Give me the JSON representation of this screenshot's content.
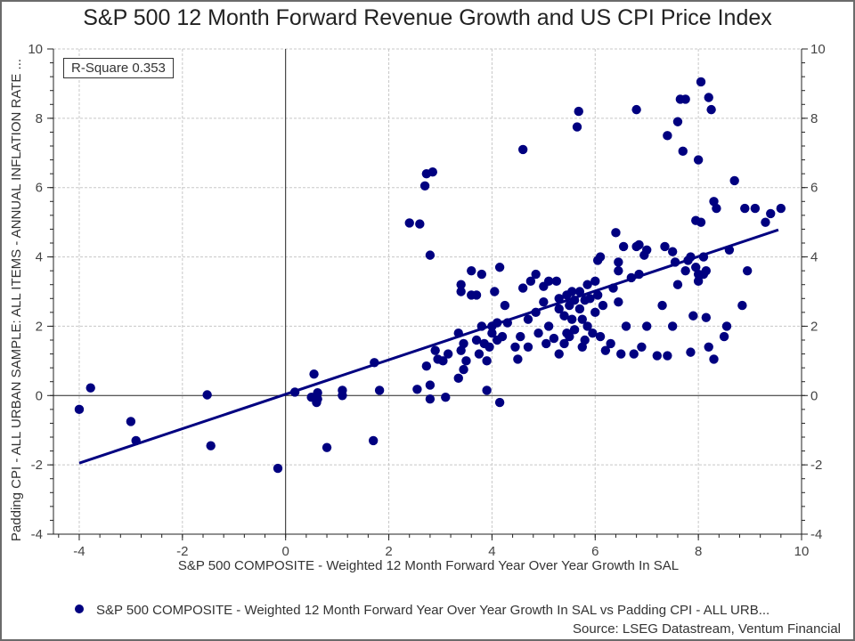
{
  "chart_data": {
    "type": "scatter",
    "title": "S&P 500 12 Month Forward Revenue Growth and US CPI Price Index",
    "xlabel": "S&P 500 COMPOSITE - Weighted 12 Month Forward Year Over Year Growth In SAL",
    "ylabel": "Padding CPI - ALL URBAN SAMPLE: ALL ITEMS - ANNUAL INFLATION RATE ...",
    "xlim": [
      -4.5,
      10
    ],
    "ylim": [
      -4,
      10
    ],
    "x_ticks": [
      "-4",
      "-2",
      "0",
      "2",
      "4",
      "6",
      "8",
      "10"
    ],
    "y_ticks": [
      "-4",
      "-2",
      "0",
      "2",
      "4",
      "6",
      "8",
      "10"
    ],
    "grid": true,
    "annotation": "R-Square 0.353",
    "legend": {
      "position": "bottom",
      "entries": [
        "S&P 500 COMPOSITE - Weighted 12 Month Forward Year Over Year Growth In SAL vs Padding CPI - ALL URB..."
      ]
    },
    "series": [
      {
        "name": "S&P 500 COMPOSITE - Weighted 12 Month Forward Year Over Year Growth In SAL vs Padding CPI - ALL URB...",
        "color": "#000080",
        "points": [
          [
            -4.0,
            -0.4
          ],
          [
            -3.78,
            0.22
          ],
          [
            -3.0,
            -0.75
          ],
          [
            -2.9,
            -1.3
          ],
          [
            -1.52,
            0.02
          ],
          [
            -1.45,
            -1.45
          ],
          [
            -0.15,
            -2.1
          ],
          [
            0.18,
            0.1
          ],
          [
            0.5,
            -0.05
          ],
          [
            0.55,
            0.62
          ],
          [
            0.6,
            -0.2
          ],
          [
            0.62,
            0.08
          ],
          [
            0.62,
            -0.1
          ],
          [
            0.8,
            -1.5
          ],
          [
            1.1,
            0.15
          ],
          [
            1.1,
            0.0
          ],
          [
            1.7,
            -1.3
          ],
          [
            1.72,
            0.95
          ],
          [
            1.82,
            0.15
          ],
          [
            2.4,
            4.98
          ],
          [
            2.55,
            0.18
          ],
          [
            2.6,
            4.95
          ],
          [
            2.7,
            6.05
          ],
          [
            2.73,
            6.4
          ],
          [
            2.73,
            0.85
          ],
          [
            2.8,
            -0.1
          ],
          [
            2.8,
            4.05
          ],
          [
            2.85,
            6.45
          ],
          [
            2.8,
            0.3
          ],
          [
            2.95,
            1.05
          ],
          [
            2.9,
            1.3
          ],
          [
            3.05,
            1.0
          ],
          [
            3.1,
            -0.05
          ],
          [
            3.15,
            1.2
          ],
          [
            3.35,
            1.8
          ],
          [
            3.4,
            3.2
          ],
          [
            3.4,
            3.0
          ],
          [
            3.45,
            1.5
          ],
          [
            3.35,
            0.5
          ],
          [
            3.4,
            1.3
          ],
          [
            3.5,
            1.0
          ],
          [
            3.45,
            0.75
          ],
          [
            3.6,
            3.6
          ],
          [
            3.7,
            2.9
          ],
          [
            3.7,
            1.6
          ],
          [
            3.75,
            1.2
          ],
          [
            3.6,
            2.9
          ],
          [
            3.8,
            3.5
          ],
          [
            3.8,
            2.0
          ],
          [
            3.85,
            1.5
          ],
          [
            3.9,
            0.15
          ],
          [
            3.9,
            1.0
          ],
          [
            3.95,
            1.4
          ],
          [
            4.0,
            1.8
          ],
          [
            4.0,
            2.0
          ],
          [
            4.05,
            3.0
          ],
          [
            4.1,
            2.1
          ],
          [
            4.1,
            1.6
          ],
          [
            4.15,
            3.7
          ],
          [
            4.15,
            -0.2
          ],
          [
            4.2,
            1.7
          ],
          [
            4.25,
            2.6
          ],
          [
            4.3,
            2.1
          ],
          [
            4.45,
            1.4
          ],
          [
            4.5,
            1.05
          ],
          [
            4.55,
            1.7
          ],
          [
            4.6,
            7.1
          ],
          [
            4.6,
            3.1
          ],
          [
            4.7,
            1.4
          ],
          [
            4.7,
            2.2
          ],
          [
            4.75,
            3.3
          ],
          [
            4.85,
            3.5
          ],
          [
            4.85,
            2.4
          ],
          [
            4.9,
            1.8
          ],
          [
            5.0,
            3.15
          ],
          [
            5.0,
            2.7
          ],
          [
            5.05,
            1.5
          ],
          [
            5.1,
            2.0
          ],
          [
            5.1,
            3.3
          ],
          [
            5.2,
            1.65
          ],
          [
            5.25,
            3.3
          ],
          [
            5.3,
            2.5
          ],
          [
            5.3,
            1.2
          ],
          [
            5.3,
            2.8
          ],
          [
            5.4,
            1.5
          ],
          [
            5.4,
            2.3
          ],
          [
            5.45,
            1.8
          ],
          [
            5.45,
            2.9
          ],
          [
            5.5,
            2.6
          ],
          [
            5.5,
            1.7
          ],
          [
            5.55,
            3.0
          ],
          [
            5.55,
            2.2
          ],
          [
            5.6,
            2.75
          ],
          [
            5.6,
            1.9
          ],
          [
            5.65,
            7.75
          ],
          [
            5.68,
            8.2
          ],
          [
            5.7,
            2.5
          ],
          [
            5.7,
            3.0
          ],
          [
            5.75,
            1.4
          ],
          [
            5.75,
            2.2
          ],
          [
            5.8,
            2.75
          ],
          [
            5.8,
            1.6
          ],
          [
            5.85,
            3.2
          ],
          [
            5.85,
            2.0
          ],
          [
            5.9,
            2.8
          ],
          [
            5.95,
            1.8
          ],
          [
            6.0,
            2.4
          ],
          [
            6.0,
            3.3
          ],
          [
            6.05,
            3.9
          ],
          [
            6.05,
            2.9
          ],
          [
            6.1,
            4.0
          ],
          [
            6.1,
            1.7
          ],
          [
            6.15,
            2.6
          ],
          [
            6.2,
            1.3
          ],
          [
            6.3,
            1.5
          ],
          [
            6.35,
            3.1
          ],
          [
            6.4,
            4.7
          ],
          [
            6.45,
            3.6
          ],
          [
            6.45,
            3.85
          ],
          [
            6.45,
            2.7
          ],
          [
            6.5,
            1.2
          ],
          [
            6.55,
            4.3
          ],
          [
            6.6,
            2.0
          ],
          [
            6.7,
            3.4
          ],
          [
            6.75,
            1.2
          ],
          [
            6.8,
            8.25
          ],
          [
            6.8,
            4.3
          ],
          [
            6.85,
            3.5
          ],
          [
            6.85,
            4.35
          ],
          [
            6.9,
            1.4
          ],
          [
            6.95,
            4.05
          ],
          [
            7.0,
            4.2
          ],
          [
            7.0,
            2.0
          ],
          [
            7.2,
            1.15
          ],
          [
            7.3,
            2.6
          ],
          [
            7.35,
            4.3
          ],
          [
            7.4,
            7.5
          ],
          [
            7.4,
            1.15
          ],
          [
            7.5,
            2.0
          ],
          [
            7.5,
            4.15
          ],
          [
            7.6,
            7.9
          ],
          [
            7.6,
            3.2
          ],
          [
            7.65,
            8.55
          ],
          [
            7.7,
            7.05
          ],
          [
            7.75,
            8.55
          ],
          [
            7.75,
            3.6
          ],
          [
            7.8,
            3.9
          ],
          [
            7.85,
            4.0
          ],
          [
            7.85,
            1.25
          ],
          [
            7.9,
            2.3
          ],
          [
            7.95,
            5.05
          ],
          [
            8.0,
            3.5
          ],
          [
            8.0,
            3.3
          ],
          [
            8.0,
            6.8
          ],
          [
            8.05,
            9.05
          ],
          [
            8.05,
            5.0
          ],
          [
            8.1,
            4.0
          ],
          [
            8.1,
            3.5
          ],
          [
            8.15,
            3.6
          ],
          [
            8.15,
            2.25
          ],
          [
            8.2,
            8.6
          ],
          [
            8.2,
            1.4
          ],
          [
            8.25,
            8.25
          ],
          [
            8.3,
            5.6
          ],
          [
            8.3,
            1.05
          ],
          [
            8.35,
            5.4
          ],
          [
            8.5,
            1.7
          ],
          [
            8.55,
            2.0
          ],
          [
            8.6,
            4.2
          ],
          [
            8.7,
            6.2
          ],
          [
            8.85,
            2.6
          ],
          [
            8.9,
            5.4
          ],
          [
            9.1,
            5.4
          ],
          [
            9.3,
            5.0
          ],
          [
            9.4,
            5.25
          ],
          [
            9.6,
            5.4
          ],
          [
            8.95,
            3.6
          ],
          [
            7.95,
            3.7
          ],
          [
            7.55,
            3.85
          ]
        ]
      }
    ],
    "trendline": {
      "x": [
        -4.0,
        9.55
      ],
      "y": [
        -1.95,
        4.78
      ],
      "color": "#000080"
    }
  },
  "source": "Source: LSEG Datastream, Ventum Financial"
}
